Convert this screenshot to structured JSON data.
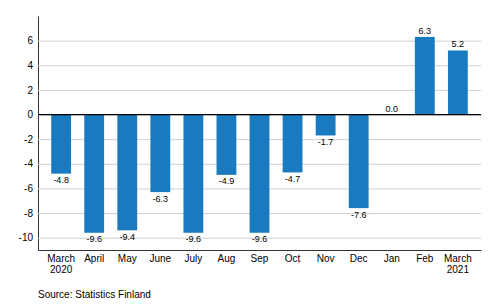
{
  "chart_data": {
    "type": "bar",
    "categories": [
      "March\n2020",
      "April",
      "May",
      "June",
      "July",
      "Aug",
      "Sep",
      "Oct",
      "Nov",
      "Dec",
      "Jan",
      "Feb",
      "March\n2021"
    ],
    "values": [
      -4.8,
      -9.6,
      -9.4,
      -6.3,
      -9.6,
      -4.9,
      -9.6,
      -4.7,
      -1.7,
      -7.6,
      0.0,
      6.3,
      5.2
    ],
    "value_labels": [
      "-4.8",
      "-9.6",
      "-9.4",
      "-6.3",
      "-9.6",
      "-4.9",
      "-9.6",
      "-4.7",
      "-1.7",
      "-7.6",
      "0.0",
      "6.3",
      "5.2"
    ],
    "color": "#1a7abf",
    "ylim": [
      -11,
      8
    ],
    "yticks": [
      -10,
      -8,
      -6,
      -4,
      -2,
      0,
      2,
      4,
      6
    ],
    "grid": true,
    "data_labels": true,
    "annotations": [
      "Source: Statistics Finland"
    ]
  }
}
